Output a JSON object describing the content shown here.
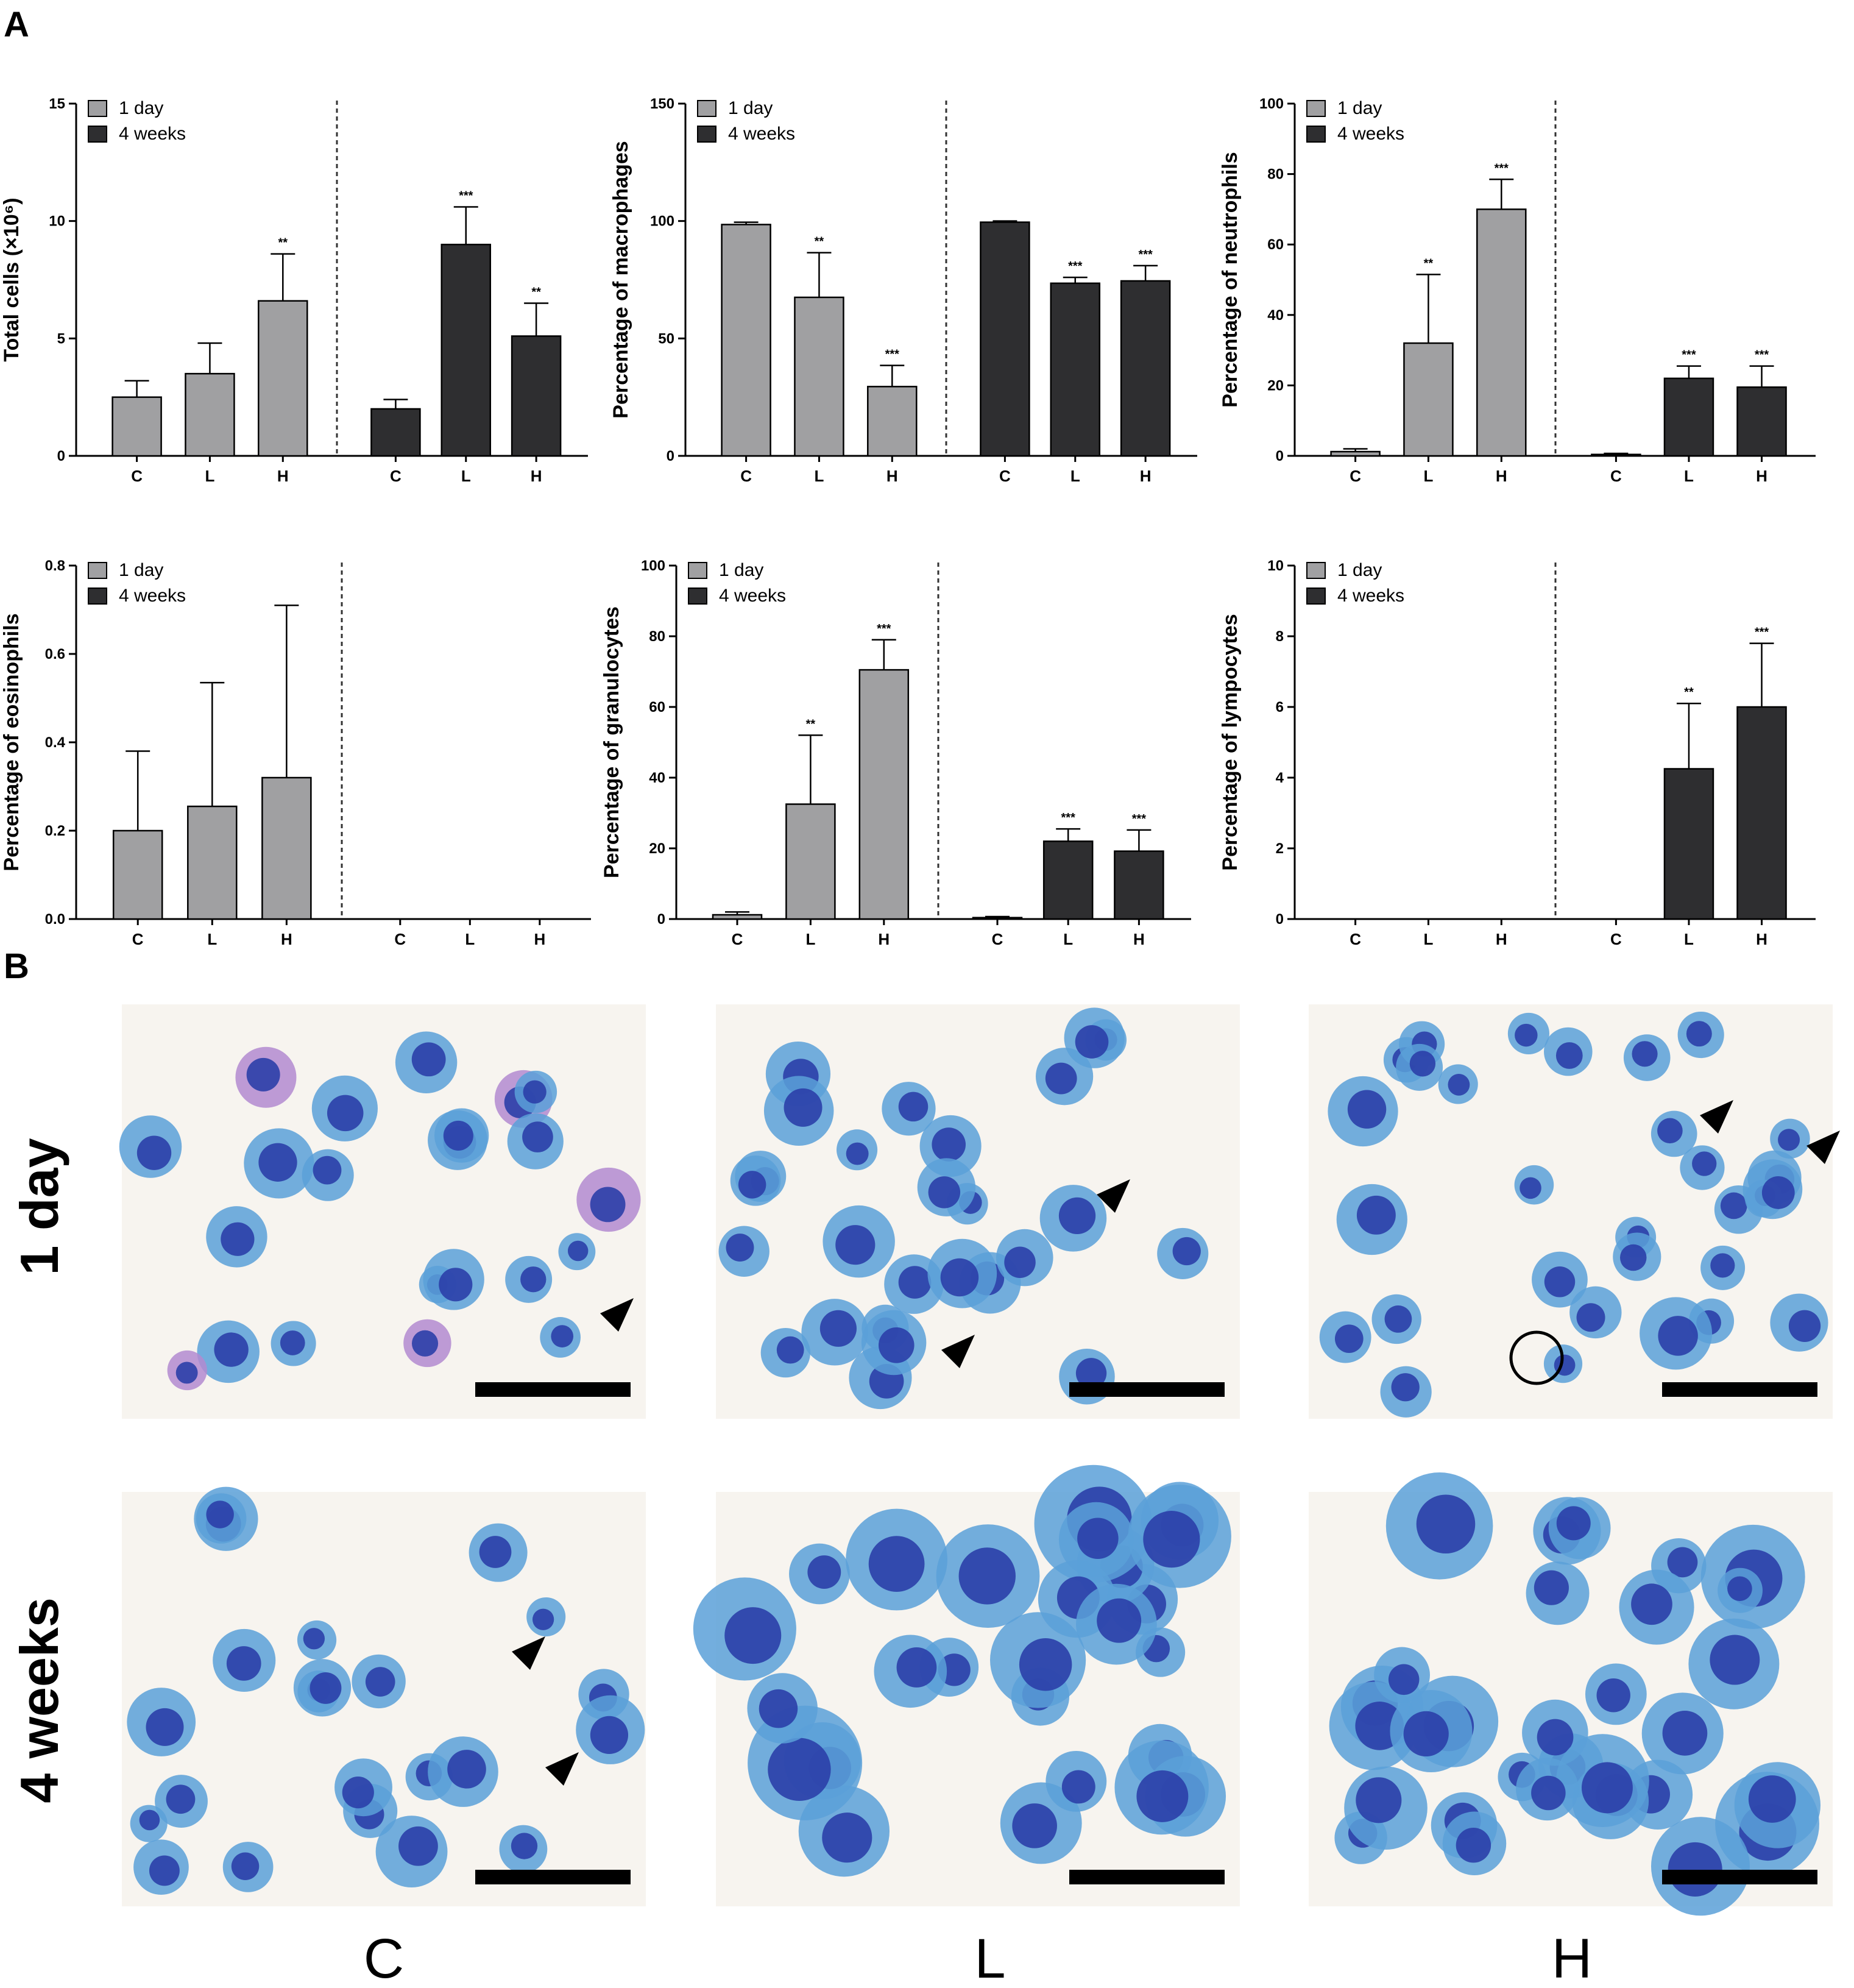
{
  "figure": {
    "panel_a_label": "A",
    "panel_b_label": "B",
    "legend": {
      "day1": "1 day",
      "week4": "4 weeks"
    },
    "colors": {
      "day1": "#a0a0a2",
      "week4": "#2e2e30",
      "divider": "#333333"
    },
    "micrographs": {
      "row_labels": [
        "1 day",
        "4 weeks"
      ],
      "col_labels": [
        "C",
        "L",
        "H"
      ],
      "background": "#f7f4ef",
      "macrophage": "#5aa0d8",
      "nucleus": "#2b3fa8",
      "eosinophil": "#b38ad0"
    }
  },
  "chart_data": [
    {
      "type": "bar",
      "ylabel": "Total cells (×10⁶)",
      "yticks": [
        "0",
        "5",
        "10",
        "15"
      ],
      "ylim": [
        0,
        15
      ],
      "categories": [
        "C",
        "L",
        "H"
      ],
      "groups": [
        {
          "name": "1 day",
          "values": [
            2.5,
            3.5,
            6.6
          ],
          "errors": [
            0.7,
            1.3,
            2.0
          ],
          "sig": [
            "",
            "",
            "**"
          ]
        },
        {
          "name": "4 weeks",
          "values": [
            2.0,
            9.0,
            5.1
          ],
          "errors": [
            0.4,
            1.6,
            1.4
          ],
          "sig": [
            "",
            "***",
            "**"
          ]
        }
      ]
    },
    {
      "type": "bar",
      "ylabel": "Percentage of macrophages",
      "yticks": [
        "0",
        "50",
        "100",
        "150"
      ],
      "ylim": [
        0,
        150
      ],
      "categories": [
        "C",
        "L",
        "H"
      ],
      "groups": [
        {
          "name": "1 day",
          "values": [
            98.5,
            67.5,
            29.5
          ],
          "errors": [
            1,
            19,
            9
          ],
          "sig": [
            "",
            "**",
            "***"
          ]
        },
        {
          "name": "4 weeks",
          "values": [
            99.5,
            73.5,
            74.5
          ],
          "errors": [
            0.5,
            2.5,
            6.5
          ],
          "sig": [
            "",
            "***",
            "***"
          ]
        }
      ]
    },
    {
      "type": "bar",
      "ylabel": "Percentage of neutrophils",
      "yticks": [
        "0",
        "20",
        "40",
        "60",
        "80",
        "100"
      ],
      "ylim": [
        0,
        100
      ],
      "categories": [
        "C",
        "L",
        "H"
      ],
      "groups": [
        {
          "name": "1 day",
          "values": [
            1.2,
            32.0,
            70.0
          ],
          "errors": [
            0.8,
            19.5,
            8.5
          ],
          "sig": [
            "",
            "**",
            "***"
          ]
        },
        {
          "name": "4 weeks",
          "values": [
            0.4,
            22.0,
            19.5
          ],
          "errors": [
            0.3,
            3.5,
            6.0
          ],
          "sig": [
            "",
            "***",
            "***"
          ]
        }
      ]
    },
    {
      "type": "bar",
      "ylabel": "Percentage of eosinophils",
      "yticks": [
        "0.0",
        "0.2",
        "0.4",
        "0.6",
        "0.8"
      ],
      "ylim": [
        0,
        0.8
      ],
      "categories": [
        "C",
        "L",
        "H"
      ],
      "groups": [
        {
          "name": "1 day",
          "values": [
            0.2,
            0.255,
            0.32
          ],
          "errors": [
            0.18,
            0.28,
            0.39
          ],
          "sig": [
            "",
            "",
            ""
          ]
        },
        {
          "name": "4 weeks",
          "values": [
            0,
            0,
            0
          ],
          "errors": [
            0,
            0,
            0
          ],
          "sig": [
            "",
            "",
            ""
          ]
        }
      ]
    },
    {
      "type": "bar",
      "ylabel": "Percentage of granulocytes",
      "yticks": [
        "0",
        "20",
        "40",
        "60",
        "80",
        "100"
      ],
      "ylim": [
        0,
        100
      ],
      "categories": [
        "C",
        "L",
        "H"
      ],
      "groups": [
        {
          "name": "1 day",
          "values": [
            1.2,
            32.5,
            70.5
          ],
          "errors": [
            0.8,
            19.5,
            8.5
          ],
          "sig": [
            "",
            "**",
            "***"
          ]
        },
        {
          "name": "4 weeks",
          "values": [
            0.4,
            22.0,
            19.2
          ],
          "errors": [
            0.3,
            3.5,
            6.0
          ],
          "sig": [
            "",
            "***",
            "***"
          ]
        }
      ]
    },
    {
      "type": "bar",
      "ylabel": "Percentage of lympocytes",
      "yticks": [
        "0",
        "2",
        "4",
        "6",
        "8",
        "10"
      ],
      "ylim": [
        0,
        10
      ],
      "categories": [
        "C",
        "L",
        "H"
      ],
      "groups": [
        {
          "name": "1 day",
          "values": [
            0,
            0,
            0
          ],
          "errors": [
            0,
            0,
            0
          ],
          "sig": [
            "",
            "",
            ""
          ]
        },
        {
          "name": "4 weeks",
          "values": [
            0,
            4.25,
            6.0
          ],
          "errors": [
            0,
            1.85,
            1.8
          ],
          "sig": [
            "",
            "**",
            "***"
          ]
        }
      ]
    }
  ]
}
